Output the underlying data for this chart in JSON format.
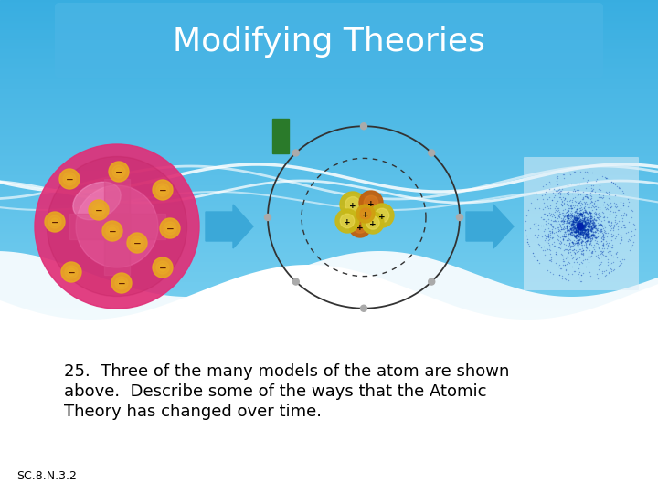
{
  "title": "Modifying Theories",
  "body_bg": "#ffffff",
  "arrow_color": "#3ba8d8",
  "atom1_color_main": "#e83080",
  "atom1_color_light": "#f060a0",
  "atom1_color_dark": "#a01050",
  "atom1_cross_color": "#d04080",
  "electron_color": "#e8a820",
  "electron_minus_color": "#7a3010",
  "atom2_orbit_color": "#000000",
  "atom2_nucleus_yellow": "#c8b818",
  "atom2_nucleus_orange": "#c86010",
  "atom3_dot_color": "#2255bb",
  "green_rect_color": "#2a7a2a",
  "wave_color": "#ffffff",
  "text_color": "#000000",
  "question_text_line1": "25.  Three of the many models of the atom are shown",
  "question_text_line2": "above.  Describe some of the ways that the Atomic",
  "question_text_line3": "Theory has changed over time.",
  "footnote": "SC.8.N.3.2",
  "title_fontsize": 26,
  "question_fontsize": 13,
  "footnote_fontsize": 9
}
